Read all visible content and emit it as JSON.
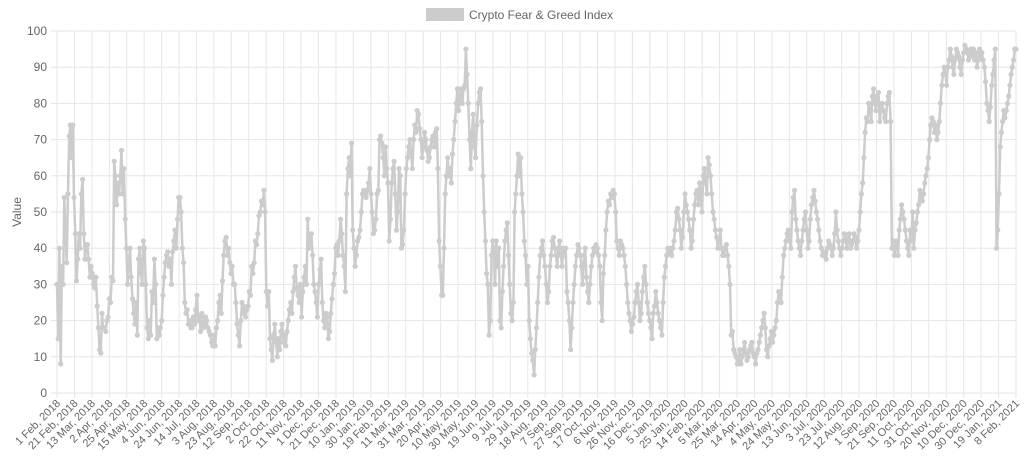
{
  "chart_data": {
    "type": "line",
    "title": "",
    "xlabel": "",
    "ylabel": "Value",
    "ylim": [
      0,
      100
    ],
    "yticks": [
      0,
      10,
      20,
      30,
      40,
      50,
      60,
      70,
      80,
      90,
      100
    ],
    "grid": true,
    "legend": {
      "position": "top-center"
    },
    "colors": {
      "series": "#cccccc",
      "grid": "#e6e6e6",
      "text": "#666666"
    },
    "x_tick_labels": [
      "1 Feb, 2018",
      "21 Feb, 2018",
      "13 Mar, 2018",
      "2 Apr, 2018",
      "25 Apr, 2018",
      "15 May, 2018",
      "4 Jun, 2018",
      "24 Jun, 2018",
      "14 Jul, 2018",
      "3 Aug, 2018",
      "23 Aug, 2018",
      "12 Sep, 2018",
      "2 Oct, 2018",
      "22 Oct, 2018",
      "11 Nov, 2018",
      "1 Dec, 2018",
      "21 Dec, 2018",
      "10 Jan, 2019",
      "30 Jan, 2019",
      "19 Feb, 2019",
      "11 Mar, 2019",
      "31 Mar, 2019",
      "20 Apr, 2019",
      "10 May, 2019",
      "30 May, 2019",
      "19 Jun, 2019",
      "9 Jul, 2019",
      "29 Jul, 2019",
      "18 Aug, 2019",
      "7 Sep, 2019",
      "27 Sep, 2019",
      "17 Oct, 2019",
      "6 Nov, 2019",
      "26 Nov, 2019",
      "16 Dec, 2019",
      "5 Jan, 2020",
      "25 Jan, 2020",
      "14 Feb, 2020",
      "5 Mar, 2020",
      "25 Mar, 2020",
      "14 Apr, 2020",
      "4 May, 2020",
      "24 May, 2020",
      "13 Jun, 2020",
      "3 Jul, 2020",
      "23 Jul, 2020",
      "12 Aug, 2020",
      "1 Sep, 2020",
      "21 Sep, 2020",
      "11 Oct, 2020",
      "31 Oct, 2020",
      "20 Nov, 2020",
      "10 Dec, 2020",
      "30 Dec, 2020",
      "19 Jan, 2021",
      "8 Feb, 2021"
    ],
    "series": [
      {
        "name": "Crypto Fear & Greed Index",
        "values": [
          30,
          15,
          40,
          8,
          35,
          30,
          54,
          44,
          36,
          55,
          71,
          74,
          65,
          74,
          54,
          44,
          31,
          37,
          44,
          40,
          55,
          59,
          44,
          37,
          41,
          41,
          37,
          32,
          35,
          33,
          30,
          29,
          32,
          24,
          18,
          12,
          11,
          22,
          18,
          18,
          17,
          20,
          21,
          26,
          25,
          32,
          31,
          64,
          60,
          52,
          58,
          55,
          60,
          67,
          55,
          62,
          48,
          40,
          30,
          36,
          40,
          32,
          26,
          22,
          19,
          25,
          16,
          37,
          40,
          33,
          30,
          42,
          40,
          30,
          18,
          15,
          20,
          16,
          28,
          25,
          37,
          30,
          15,
          18,
          16,
          18,
          20,
          27,
          32,
          36,
          38,
          39,
          35,
          37,
          30,
          39,
          42,
          45,
          40,
          48,
          54,
          54,
          50,
          40,
          36,
          25,
          22,
          23,
          19,
          20,
          18,
          18,
          21,
          19,
          23,
          27,
          20,
          21,
          17,
          22,
          18,
          19,
          21,
          20,
          18,
          17,
          16,
          14,
          13,
          16,
          13,
          18,
          20,
          25,
          27,
          22,
          31,
          38,
          42,
          43,
          38,
          40,
          36,
          33,
          35,
          30,
          30,
          25,
          19,
          16,
          13,
          20,
          25,
          24,
          22,
          21,
          23,
          24,
          28,
          27,
          35,
          33,
          36,
          42,
          41,
          44,
          49,
          50,
          53,
          52,
          56,
          50,
          28,
          24,
          28,
          15,
          12,
          9,
          16,
          19,
          14,
          10,
          15,
          12,
          17,
          19,
          14,
          16,
          13,
          17,
          20,
          23,
          25,
          22,
          28,
          32,
          35,
          29,
          27,
          25,
          30,
          21,
          28,
          32,
          35,
          30,
          48,
          40,
          42,
          44,
          38,
          30,
          28,
          25,
          21,
          30,
          34,
          37,
          25,
          20,
          18,
          22,
          21,
          15,
          17,
          22,
          26,
          30,
          33,
          40,
          41,
          38,
          42,
          48,
          44,
          38,
          35,
          28,
          55,
          62,
          65,
          60,
          69,
          45,
          40,
          35,
          38,
          42,
          43,
          45,
          50,
          55,
          56,
          55,
          54,
          56,
          58,
          62,
          55,
          50,
          44,
          45,
          48,
          55,
          56,
          70,
          71,
          69,
          65,
          60,
          68,
          62,
          58,
          42,
          48,
          58,
          62,
          64,
          55,
          45,
          50,
          62,
          60,
          40,
          41,
          45,
          55,
          62,
          65,
          68,
          70,
          66,
          62,
          70,
          74,
          72,
          78,
          77,
          73,
          70,
          65,
          68,
          72,
          70,
          67,
          64,
          65,
          68,
          70,
          71,
          68,
          72,
          73,
          62,
          42,
          35,
          27,
          27,
          40,
          55,
          60,
          65,
          60,
          62,
          58,
          66,
          70,
          75,
          80,
          84,
          78,
          82,
          84,
          80,
          84,
          85,
          95,
          88,
          80,
          70,
          62,
          72,
          77,
          68,
          65,
          74,
          80,
          83,
          84,
          75,
          60,
          50,
          42,
          33,
          30,
          16,
          20,
          38,
          42,
          40,
          30,
          42,
          35,
          40,
          20,
          18,
          28,
          35,
          42,
          45,
          47,
          38,
          30,
          22,
          20,
          25,
          50,
          55,
          60,
          66,
          60,
          65,
          55,
          50,
          42,
          38,
          30,
          35,
          20,
          15,
          11,
          9,
          5,
          12,
          18,
          25,
          32,
          38,
          40,
          42,
          38,
          35,
          30,
          25,
          28,
          35,
          38,
          42,
          43,
          40,
          38,
          35,
          40,
          42,
          38,
          35,
          40,
          38,
          40,
          28,
          25,
          20,
          12,
          18,
          25,
          30,
          35,
          38,
          41,
          40,
          38,
          35,
          30,
          38,
          40,
          32,
          28,
          25,
          30,
          35,
          38,
          40,
          39,
          41,
          40,
          38,
          35,
          25,
          20,
          33,
          38,
          45,
          50,
          53,
          52,
          55,
          54,
          56,
          55,
          50,
          42,
          40,
          38,
          42,
          41,
          40,
          38,
          35,
          30,
          25,
          22,
          20,
          17,
          19,
          21,
          25,
          28,
          30,
          25,
          20,
          22,
          28,
          32,
          35,
          30,
          25,
          22,
          20,
          18,
          15,
          22,
          24,
          28,
          25,
          22,
          20,
          18,
          16,
          25,
          32,
          35,
          38,
          40,
          39,
          40,
          38,
          40,
          42,
          45,
          50,
          51,
          48,
          45,
          40,
          43,
          50,
          55,
          52,
          50,
          48,
          45,
          40,
          42,
          48,
          52,
          55,
          56,
          52,
          58,
          55,
          50,
          60,
          62,
          58,
          55,
          65,
          63,
          60,
          55,
          50,
          48,
          45,
          43,
          40,
          42,
          45,
          40,
          38,
          38,
          40,
          41,
          38,
          35,
          30,
          16,
          17,
          12,
          11,
          10,
          8,
          9,
          12,
          8,
          10,
          12,
          14,
          11,
          9,
          10,
          12,
          13,
          14,
          11,
          10,
          8,
          11,
          12,
          14,
          16,
          18,
          20,
          22,
          18,
          12,
          10,
          13,
          15,
          17,
          14,
          16,
          18,
          20,
          25,
          28,
          27,
          25,
          32,
          38,
          40,
          42,
          44,
          45,
          42,
          40,
          50,
          54,
          56,
          48,
          45,
          42,
          40,
          38,
          42,
          45,
          48,
          50,
          45,
          40,
          42,
          48,
          52,
          54,
          56,
          53,
          50,
          48,
          45,
          42,
          40,
          38,
          39,
          38,
          37,
          40,
          42,
          41,
          40,
          38,
          40,
          44,
          50,
          45,
          42,
          40,
          38,
          40,
          42,
          44,
          43,
          40,
          42,
          44,
          40,
          41,
          42,
          44,
          43,
          40,
          42,
          45,
          50,
          55,
          58,
          65,
          72,
          76,
          75,
          80,
          78,
          75,
          82,
          84,
          80,
          78,
          82,
          83,
          75,
          78,
          80,
          78,
          76,
          75,
          80,
          82,
          83,
          75,
          40,
          42,
          38,
          40,
          42,
          38,
          45,
          48,
          52,
          50,
          48,
          45,
          42,
          40,
          38,
          45,
          42,
          50,
          40,
          45,
          47,
          50,
          52,
          56,
          55,
          53,
          55,
          58,
          60,
          62,
          65,
          70,
          74,
          76,
          75,
          72,
          74,
          70,
          72,
          75,
          80,
          85,
          88,
          90,
          88,
          85,
          90,
          92,
          95,
          93,
          90,
          88,
          92,
          95,
          94,
          93,
          90,
          88,
          92,
          94,
          96,
          95,
          94,
          92,
          94,
          95,
          93,
          95,
          92,
          94,
          90,
          92,
          95,
          93,
          94,
          92,
          90,
          86,
          80,
          78,
          75,
          79,
          85,
          88,
          92,
          95,
          40,
          45,
          55,
          68,
          72,
          75,
          78,
          76,
          78,
          80,
          82,
          85,
          88,
          90,
          92,
          95,
          95
        ]
      }
    ]
  }
}
